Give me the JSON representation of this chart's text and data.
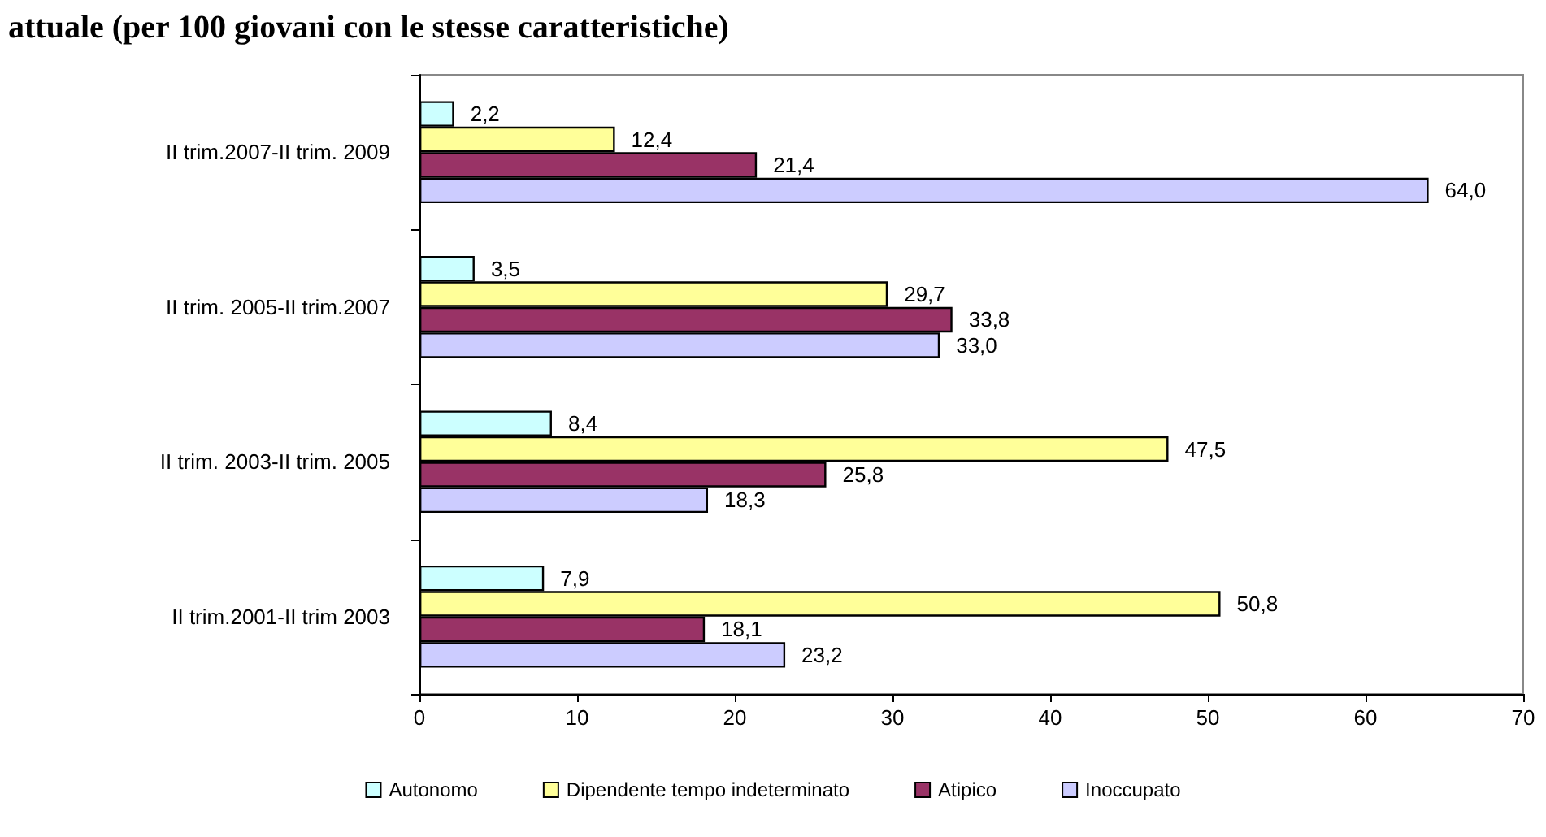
{
  "chart_data": {
    "type": "bar",
    "orientation": "horizontal",
    "title": "attuale (per 100 giovani con le stesse caratteristiche)",
    "categories": [
      "II trim.2007-II trim. 2009",
      "II trim. 2005-II trim.2007",
      "II trim. 2003-II trim. 2005",
      "II trim.2001-II trim 2003"
    ],
    "series": [
      {
        "name": "Autonomo",
        "color": "#ccffff",
        "values": [
          2.2,
          3.5,
          8.4,
          7.9
        ],
        "value_labels": [
          "2,2",
          "3,5",
          "8,4",
          "7,9"
        ]
      },
      {
        "name": "Dipendente tempo indeterminato",
        "color": "#ffff99",
        "values": [
          12.4,
          29.7,
          47.5,
          50.8
        ],
        "value_labels": [
          "12,4",
          "29,7",
          "47,5",
          "50,8"
        ]
      },
      {
        "name": "Atipico",
        "color": "#993366",
        "values": [
          21.4,
          33.8,
          25.8,
          18.1
        ],
        "value_labels": [
          "21,4",
          "33,8",
          "25,8",
          "18,1"
        ]
      },
      {
        "name": "Inoccupato",
        "color": "#ccccff",
        "values": [
          64.0,
          33.0,
          18.3,
          23.2
        ],
        "value_labels": [
          "64,0",
          "33,0",
          "18,3",
          "23,2"
        ]
      }
    ],
    "xlim": [
      0,
      70
    ],
    "xticks": [
      0,
      10,
      20,
      30,
      40,
      50,
      60,
      70
    ],
    "grid": false,
    "legend": "bottom"
  }
}
